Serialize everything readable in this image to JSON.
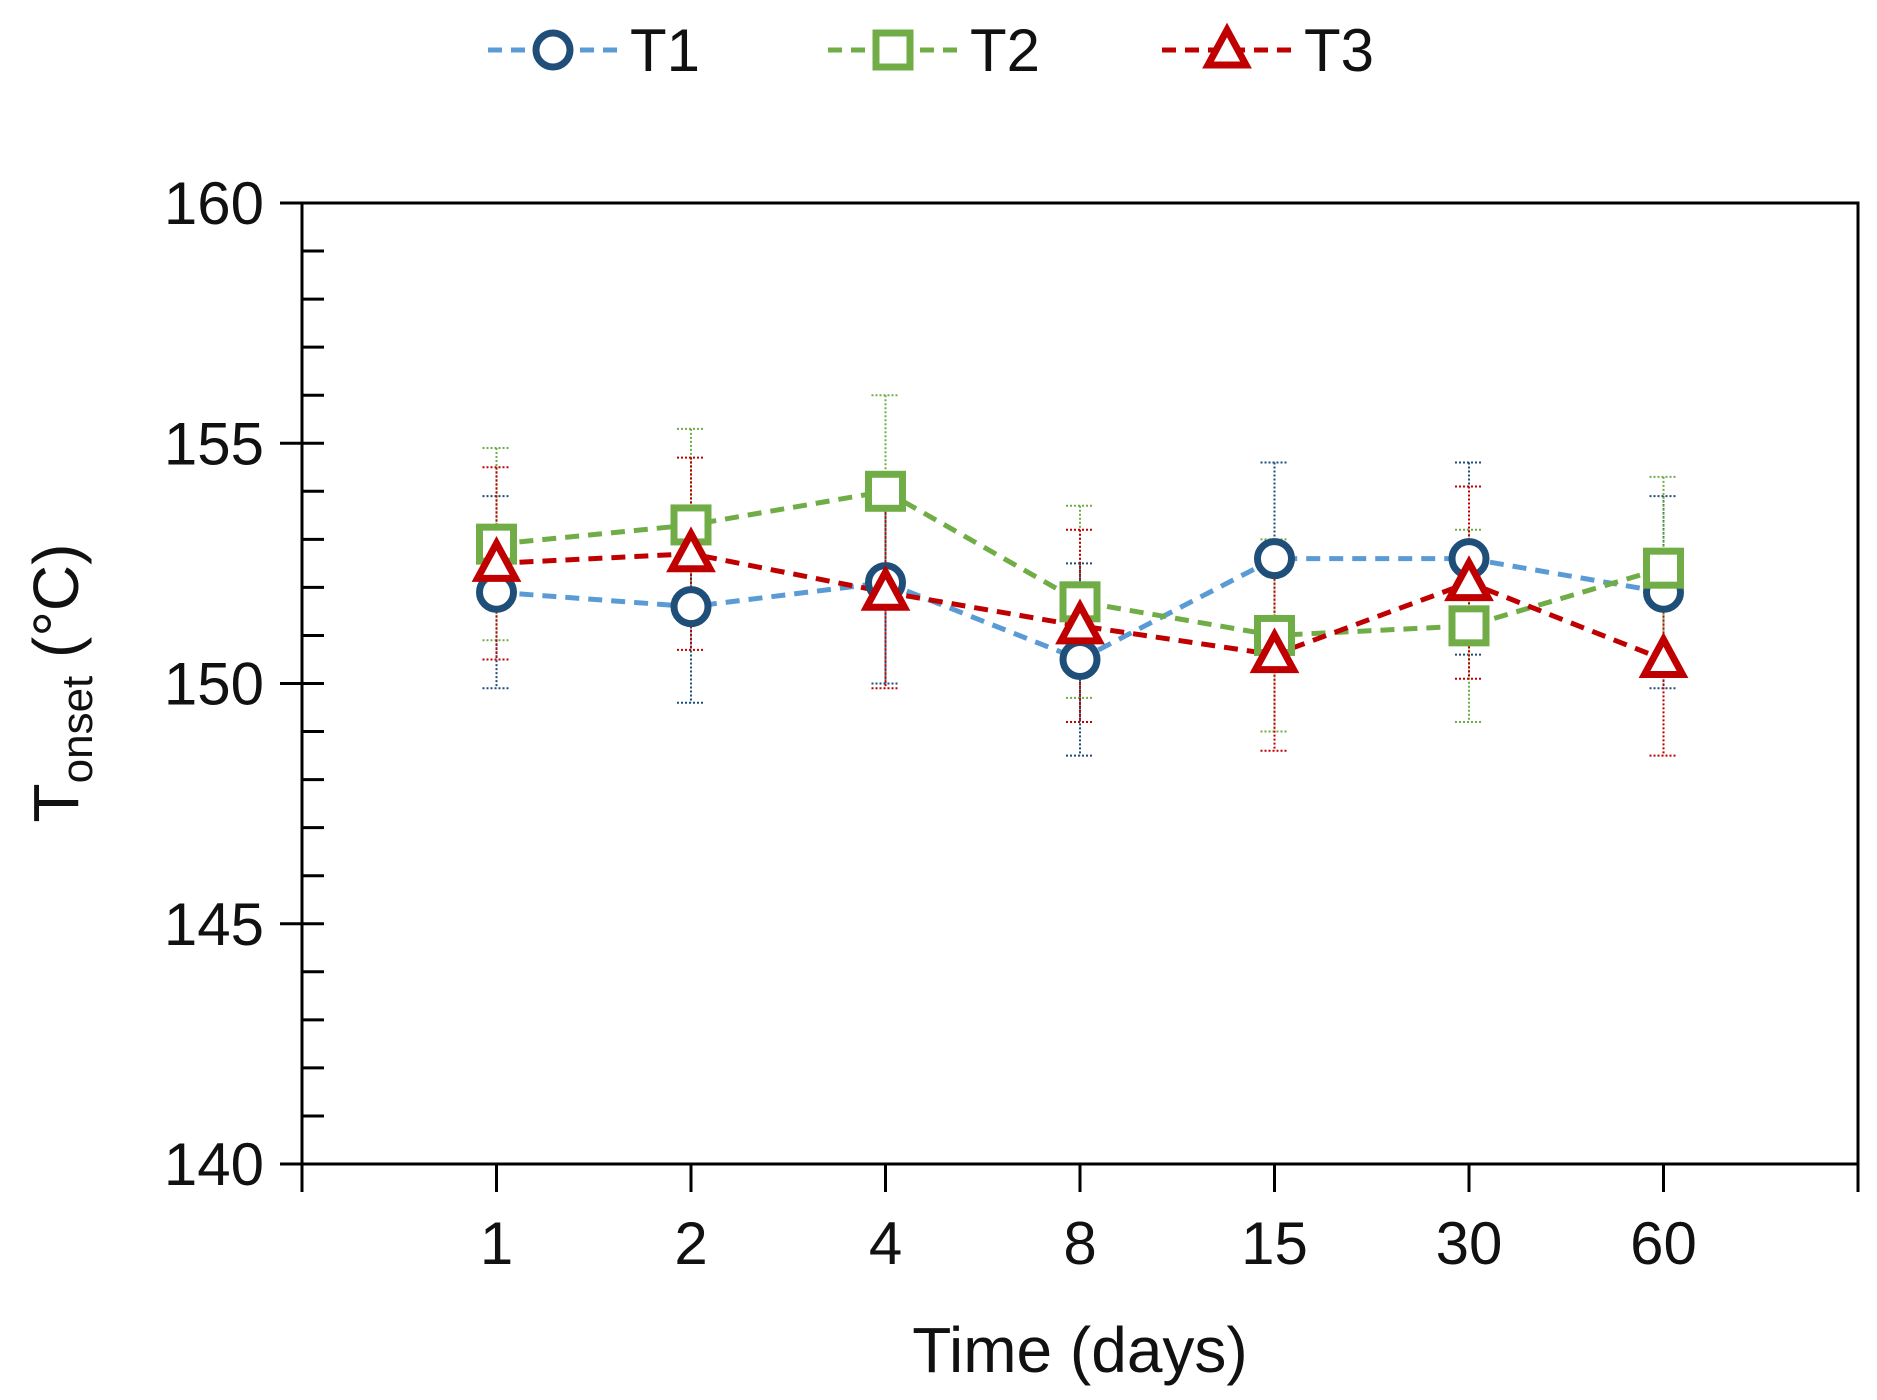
{
  "chart_data": {
    "type": "line",
    "title": "",
    "xlabel": "Time (days)",
    "ylabel": {
      "main": "T",
      "subscript": "onset",
      "unit": " (°C)"
    },
    "categories": [
      "1",
      "2",
      "4",
      "8",
      "15",
      "30",
      "60"
    ],
    "ylim": [
      140,
      160
    ],
    "y_ticks": [
      "140",
      "145",
      "150",
      "155",
      "160"
    ],
    "y_minor_step": 1,
    "grid": false,
    "legend_position": "top-center",
    "series": [
      {
        "name": "T1",
        "marker": "circle",
        "line_color": "#5B9BD5",
        "marker_color": "#1F4E79",
        "values": [
          151.9,
          151.6,
          152.1,
          150.5,
          152.6,
          152.6,
          151.9
        ],
        "errors": [
          2.0,
          2.0,
          2.1,
          2.0,
          2.0,
          2.0,
          2.0
        ]
      },
      {
        "name": "T2",
        "marker": "square",
        "line_color": "#70AD47",
        "marker_color": "#70AD47",
        "values": [
          152.9,
          153.3,
          154.0,
          151.7,
          151.0,
          151.2,
          152.4
        ],
        "errors": [
          2.0,
          2.0,
          2.0,
          2.0,
          2.0,
          2.0,
          1.9
        ]
      },
      {
        "name": "T3",
        "marker": "triangle",
        "line_color": "#C00000",
        "marker_color": "#C00000",
        "values": [
          152.5,
          152.7,
          151.9,
          151.2,
          150.6,
          152.1,
          150.5
        ],
        "errors": [
          2.0,
          2.0,
          2.0,
          2.0,
          2.0,
          2.0,
          2.0
        ]
      }
    ]
  }
}
